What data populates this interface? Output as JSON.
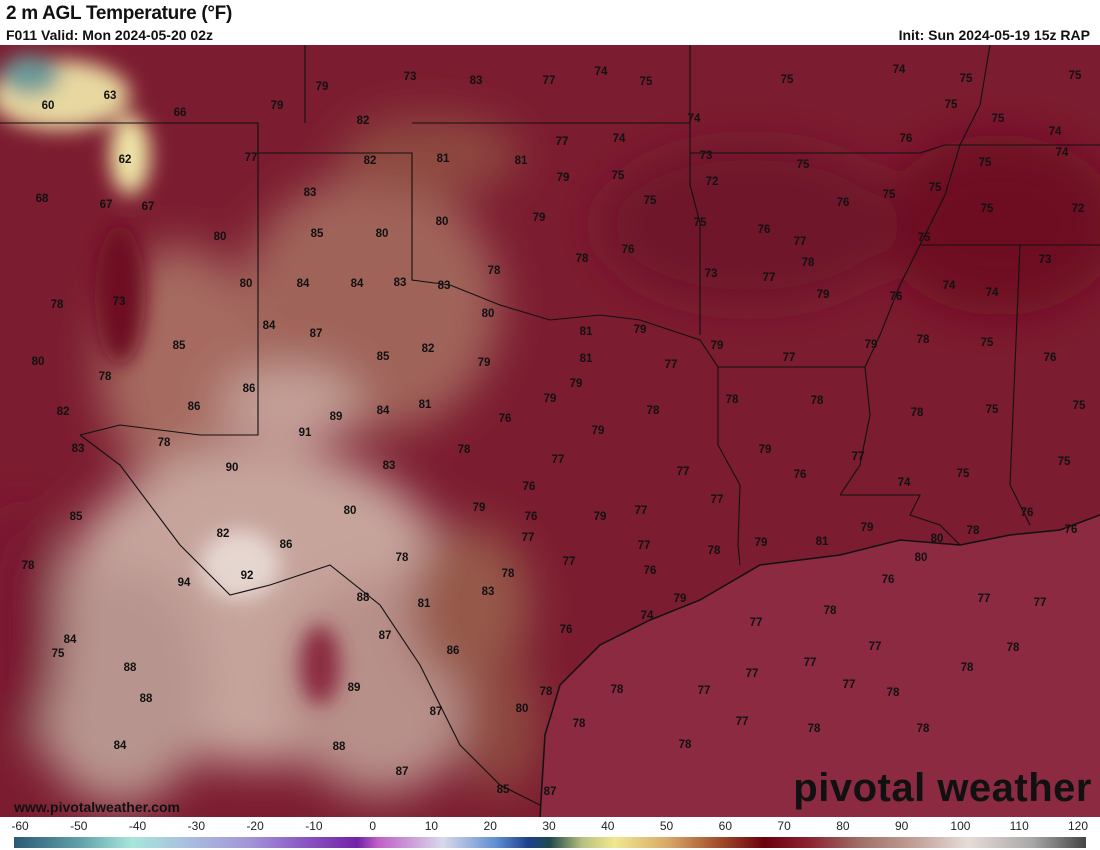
{
  "header": {
    "title": "2 m AGL Temperature (°F)",
    "valid": "F011 Valid: Mon 2024-05-20 02z",
    "init": "Init: Sun 2024-05-19 15z RAP"
  },
  "map": {
    "watermark_site": "www.pivotalweather.com",
    "watermark_logo": "pivotal weather",
    "colors": {
      "land_base": "#7c1c30",
      "gulf": "#8c2a42",
      "hot": "#d8b8ae",
      "cool": "#f0e8a0"
    },
    "station_values": [
      "73",
      "83",
      "77",
      "74",
      "75",
      "75",
      "74",
      "75",
      "75",
      "60",
      "63",
      "66",
      "79",
      "79",
      "82",
      "75",
      "75",
      "74",
      "74",
      "62",
      "77",
      "82",
      "81",
      "81",
      "77",
      "74",
      "73",
      "76",
      "75",
      "74",
      "68",
      "67",
      "67",
      "83",
      "79",
      "75",
      "72",
      "75",
      "75",
      "76",
      "75",
      "72",
      "75",
      "80",
      "85",
      "80",
      "80",
      "79",
      "75",
      "75",
      "76",
      "77",
      "75",
      "78",
      "73",
      "80",
      "84",
      "84",
      "83",
      "83",
      "78",
      "78",
      "76",
      "73",
      "77",
      "78",
      "79",
      "76",
      "74",
      "74",
      "73",
      "84",
      "87",
      "80",
      "81",
      "79",
      "79",
      "77",
      "79",
      "78",
      "75",
      "76",
      "80",
      "85",
      "78",
      "86",
      "85",
      "82",
      "79",
      "81",
      "77",
      "79",
      "82",
      "86",
      "89",
      "84",
      "81",
      "79",
      "76",
      "78",
      "78",
      "78",
      "78",
      "75",
      "75",
      "83",
      "78",
      "91",
      "79",
      "78",
      "79",
      "77",
      "75",
      "90",
      "83",
      "77",
      "77",
      "76",
      "74",
      "75",
      "85",
      "82",
      "80",
      "79",
      "76",
      "76",
      "79",
      "77",
      "77",
      "76",
      "76",
      "86",
      "77",
      "77",
      "78",
      "79",
      "81",
      "79",
      "80",
      "78",
      "78",
      "94",
      "92",
      "78",
      "78",
      "77",
      "76",
      "80",
      "88",
      "81",
      "83",
      "79",
      "76",
      "78",
      "77",
      "77",
      "84",
      "87",
      "74",
      "76",
      "77",
      "77",
      "78",
      "75",
      "88",
      "86",
      "77",
      "78",
      "88",
      "89",
      "78",
      "78",
      "77",
      "77",
      "77",
      "78",
      "87",
      "80",
      "78",
      "77",
      "78",
      "78",
      "78",
      "84",
      "88",
      "87",
      "85",
      "87"
    ]
  },
  "colorbar": {
    "units": "°F",
    "ticks": [
      "-60",
      "-50",
      "-40",
      "-30",
      "-20",
      "-10",
      "0",
      "10",
      "20",
      "30",
      "40",
      "50",
      "60",
      "70",
      "80",
      "90",
      "100",
      "110",
      "120"
    ]
  }
}
